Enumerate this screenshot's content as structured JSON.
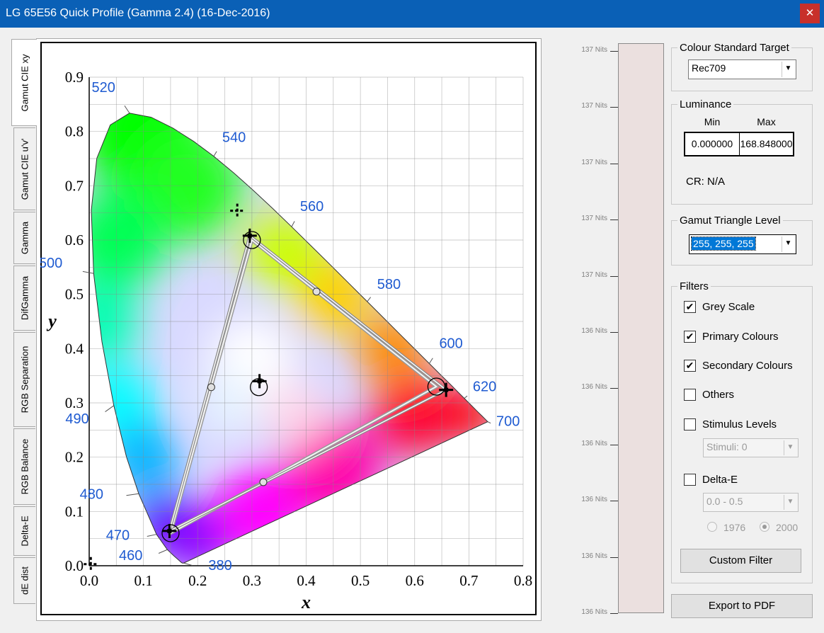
{
  "window": {
    "title": "LG 65E56 Quick Profile (Gamma 2.4) (16-Dec-2016)",
    "close_glyph": "✕"
  },
  "tabs": [
    {
      "label": "Gamut CIE xy",
      "active": true
    },
    {
      "label": "Gamut CIE u'v'"
    },
    {
      "label": "Gamma"
    },
    {
      "label": "DifGamma"
    },
    {
      "label": "RGB Separation"
    },
    {
      "label": "RGB Balance"
    },
    {
      "label": "Delta-E"
    },
    {
      "label": "dE dist"
    }
  ],
  "chart_data": {
    "type": "scatter",
    "title": "",
    "xlabel": "x",
    "ylabel": "y",
    "xlim": [
      0.0,
      0.8
    ],
    "ylim": [
      0.0,
      0.9
    ],
    "x_ticks": [
      "0.0",
      "0.1",
      "0.2",
      "0.3",
      "0.4",
      "0.5",
      "0.6",
      "0.7",
      "0.8"
    ],
    "y_ticks": [
      "0.0",
      "0.1",
      "0.2",
      "0.3",
      "0.4",
      "0.5",
      "0.6",
      "0.7",
      "0.8",
      "0.9"
    ],
    "grid": true,
    "spectral_locus_labels": [
      {
        "nm": "380",
        "x": 0.1741,
        "y": 0.005
      },
      {
        "nm": "460",
        "x": 0.144,
        "y": 0.0297
      },
      {
        "nm": "470",
        "x": 0.1241,
        "y": 0.0578
      },
      {
        "nm": "480",
        "x": 0.0913,
        "y": 0.1327
      },
      {
        "nm": "490",
        "x": 0.0454,
        "y": 0.295
      },
      {
        "nm": "500",
        "x": 0.0082,
        "y": 0.5384
      },
      {
        "nm": "520",
        "x": 0.0743,
        "y": 0.8338
      },
      {
        "nm": "540",
        "x": 0.2296,
        "y": 0.7543
      },
      {
        "nm": "560",
        "x": 0.3731,
        "y": 0.6245
      },
      {
        "nm": "580",
        "x": 0.5125,
        "y": 0.4866
      },
      {
        "nm": "600",
        "x": 0.627,
        "y": 0.3725
      },
      {
        "nm": "620",
        "x": 0.6915,
        "y": 0.3083
      },
      {
        "nm": "700",
        "x": 0.7347,
        "y": 0.2653
      }
    ],
    "target_primaries": [
      {
        "name": "red",
        "x": 0.64,
        "y": 0.33
      },
      {
        "name": "green",
        "x": 0.3,
        "y": 0.6
      },
      {
        "name": "blue",
        "x": 0.15,
        "y": 0.06
      },
      {
        "name": "white",
        "x": 0.3127,
        "y": 0.329
      }
    ],
    "target_secondaries": [
      {
        "name": "yellow",
        "x": 0.419,
        "y": 0.505
      },
      {
        "name": "cyan",
        "x": 0.225,
        "y": 0.329
      },
      {
        "name": "magenta",
        "x": 0.321,
        "y": 0.154
      }
    ],
    "measured": [
      {
        "name": "red",
        "x": 0.658,
        "y": 0.324
      },
      {
        "name": "green",
        "x": 0.296,
        "y": 0.608
      },
      {
        "name": "blue",
        "x": 0.148,
        "y": 0.064
      },
      {
        "name": "white",
        "x": 0.314,
        "y": 0.34
      },
      {
        "name": "green-outlier",
        "x": 0.273,
        "y": 0.654
      },
      {
        "name": "black",
        "x": 0.003,
        "y": 0.003
      }
    ]
  },
  "luminance_bar": {
    "labels": [
      "137 Nits",
      "137 Nits",
      "137 Nits",
      "137 Nits",
      "137 Nits",
      "136 Nits",
      "136 Nits",
      "136 Nits",
      "136 Nits",
      "136 Nits",
      "136 Nits"
    ],
    "fill_color": "#ebe0df"
  },
  "colour_standard": {
    "title": "Colour Standard Target",
    "value": "Rec709"
  },
  "luminance": {
    "title": "Luminance",
    "min_label": "Min",
    "max_label": "Max",
    "min_value": "0.000000",
    "max_value": "168.848000",
    "cr_text": "CR: N/A"
  },
  "gamut_level": {
    "title": "Gamut Triangle Level",
    "value": "255, 255, 255"
  },
  "filters": {
    "title": "Filters",
    "items": [
      {
        "label": "Grey Scale",
        "checked": "✔"
      },
      {
        "label": "Primary Colours",
        "checked": "✔"
      },
      {
        "label": "Secondary Colours",
        "checked": "✔"
      },
      {
        "label": "Others",
        "checked": ""
      },
      {
        "label": "Stimulus Levels",
        "checked": ""
      },
      {
        "label": "Delta-E",
        "checked": ""
      }
    ],
    "stimuli_value": "Stimuli: 0",
    "delta_range_value": "0.0 - 0.5",
    "radio_1976": "1976",
    "radio_2000": "2000",
    "custom_filter_label": "Custom Filter"
  },
  "export_label": "Export to PDF"
}
